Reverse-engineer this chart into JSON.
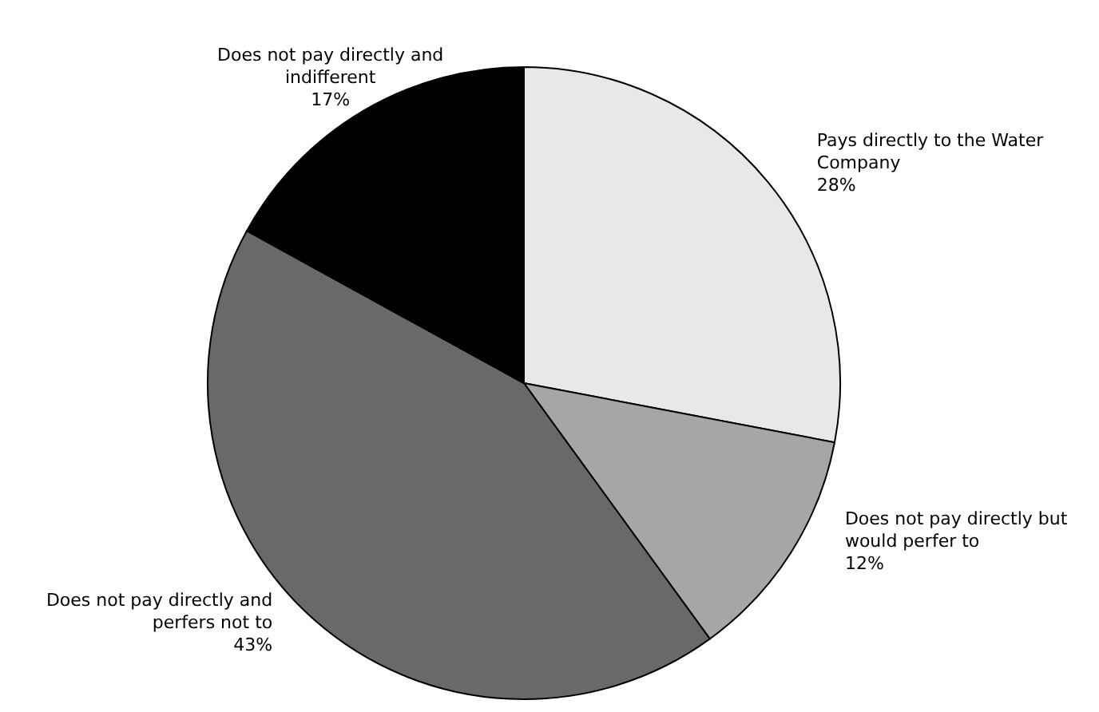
{
  "chart_data": {
    "type": "pie",
    "categories": [
      "Pays directly to the Water Company",
      "Does not pay directly but would perfer to",
      "Does not pay directly and perfers not to",
      "Does not pay directly and indifferent"
    ],
    "values": [
      28,
      12,
      43,
      17
    ],
    "colors": [
      "#e8e8e8",
      "#a6a6a6",
      "#696969",
      "#000000"
    ],
    "value_labels": [
      "28%",
      "12%",
      "43%",
      "17%"
    ]
  }
}
